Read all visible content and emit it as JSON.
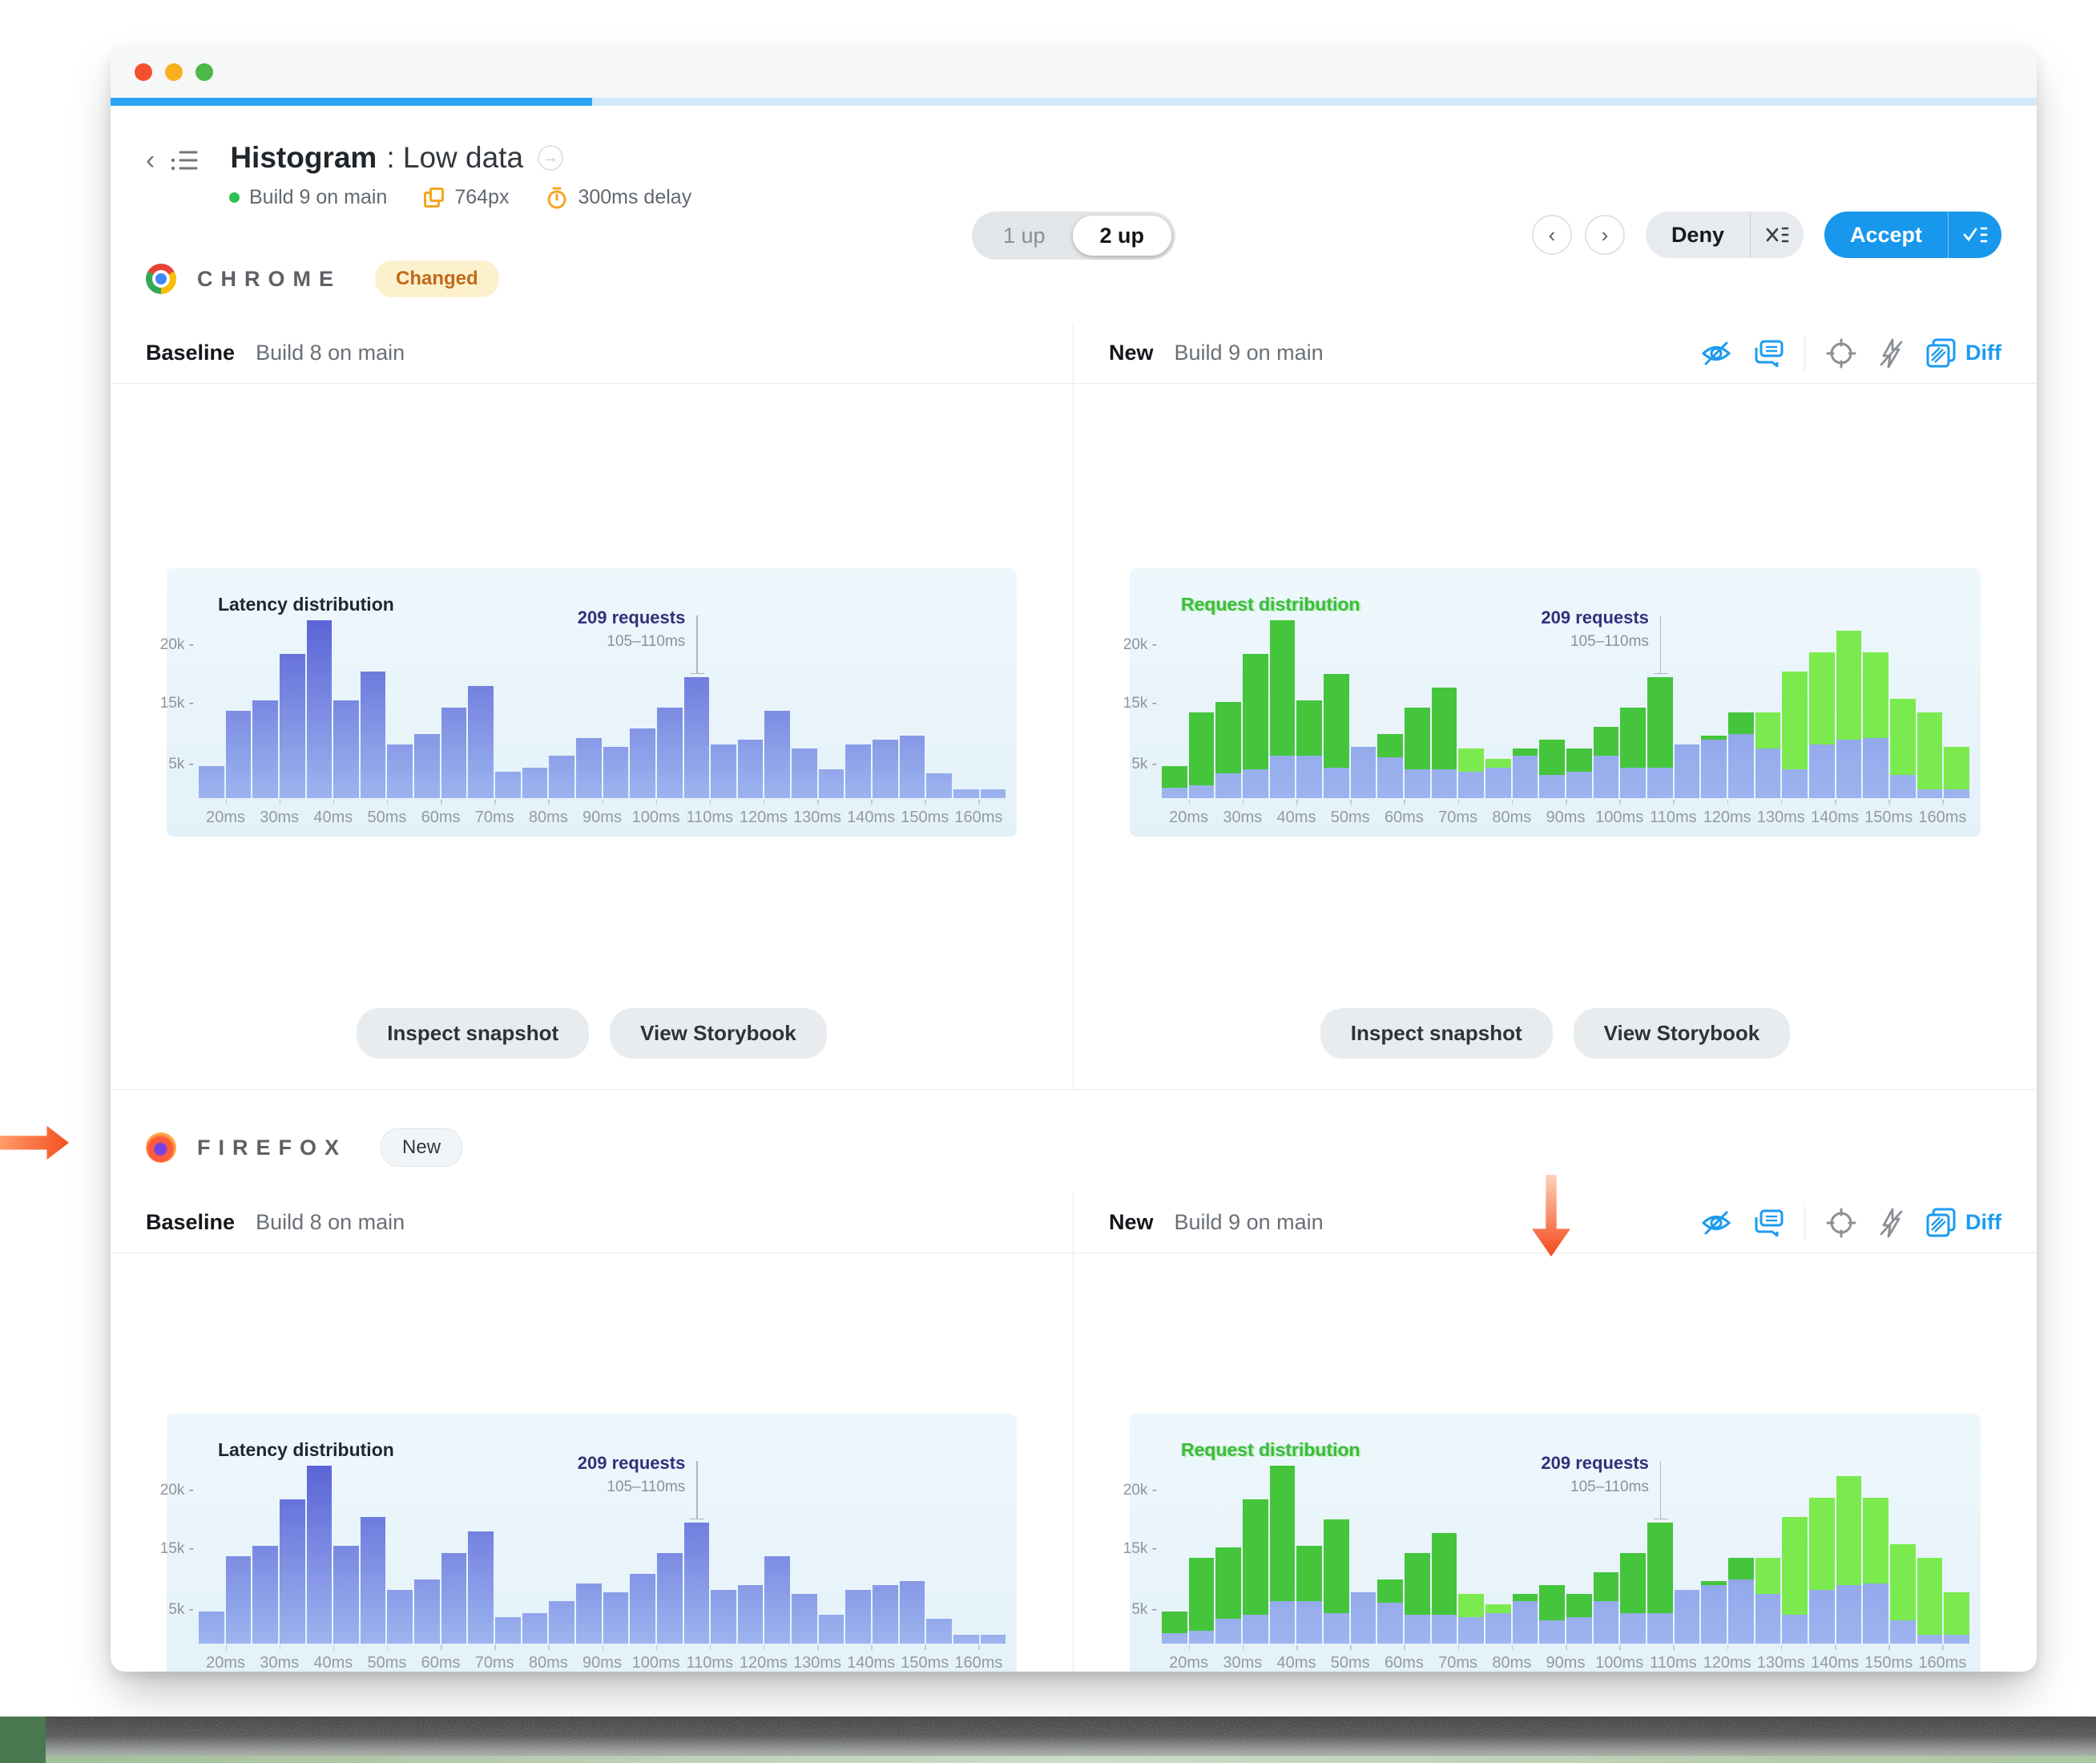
{
  "window": {
    "progress_pct": 25
  },
  "header": {
    "title": "Histogram",
    "subtitle": ": Low data",
    "build_status": "Build 9 on main",
    "viewport": "764px",
    "delay": "300ms delay",
    "view_toggle": {
      "inactive": "1 up",
      "active": "2 up"
    },
    "deny_label": "Deny",
    "accept_label": "Accept"
  },
  "sections": [
    {
      "browser": "CHROME",
      "badge": "Changed",
      "baseline_label": "Baseline",
      "baseline_build": "Build 8 on main",
      "new_label": "New",
      "new_build": "Build 9 on main",
      "diff_label": "Diff",
      "inspect_button": "Inspect snapshot",
      "storybook_button": "View Storybook"
    },
    {
      "browser": "FIREFOX",
      "badge": "New",
      "baseline_label": "Baseline",
      "baseline_build": "Build 8 on main",
      "new_label": "New",
      "new_build": "Build 9 on main",
      "diff_label": "Diff",
      "inspect_button": "Inspect snapshot",
      "storybook_button": "View Storybook"
    }
  ],
  "chart_data": {
    "type": "bar",
    "note": "latency histogram, 5ms bins from 15ms to 165ms; values are percent of tallest bar (~22k requests); y scale is non-linear as labeled",
    "baseline_title": "Latency distribution",
    "new_title": "Request distribution",
    "x_tick_labels": [
      "20ms",
      "30ms",
      "40ms",
      "50ms",
      "60ms",
      "70ms",
      "80ms",
      "90ms",
      "100ms",
      "110ms",
      "120ms",
      "130ms",
      "140ms",
      "150ms",
      "160ms"
    ],
    "y_tick_labels": [
      "5k",
      "15k",
      "20k"
    ],
    "y_tick_pos_pct": [
      19,
      53,
      86
    ],
    "baseline_pct": [
      18,
      49,
      55,
      81,
      100,
      55,
      71,
      30,
      36,
      51,
      63,
      15,
      17,
      24,
      34,
      29,
      39,
      51,
      68,
      30,
      33,
      49,
      28,
      16,
      30,
      33,
      35,
      14,
      5,
      5
    ],
    "new_green_pct": [
      18,
      48,
      54,
      81,
      100,
      55,
      70,
      24,
      36,
      51,
      62,
      28,
      22,
      28,
      33,
      28,
      40,
      51,
      68,
      25,
      35,
      48,
      48,
      71,
      82,
      94,
      82,
      56,
      48,
      29
    ],
    "new_blue_pct": [
      6,
      7,
      14,
      16,
      24,
      24,
      17,
      29,
      23,
      16,
      16,
      15,
      17,
      24,
      13,
      15,
      24,
      17,
      17,
      30,
      33,
      36,
      28,
      16,
      30,
      33,
      34,
      13,
      5,
      5
    ],
    "changed_bins": [
      12,
      13,
      23,
      24,
      25,
      26,
      27,
      28,
      29,
      30
    ],
    "annotation": {
      "label": "209 requests",
      "sublabel": "105–110ms",
      "x_pct": 61.7,
      "bar_pct": 68
    },
    "colors": {
      "baseline_bar_top": "#5a63d6",
      "baseline_bar_bottom": "#9db4ef",
      "new_bar_green": "#44c53c",
      "new_bar_green_changed": "#7bea4e",
      "new_bar_blue": "#8da6ea",
      "panel_bg": "#e9f4fa",
      "accent_blue": "#1798ec"
    }
  }
}
